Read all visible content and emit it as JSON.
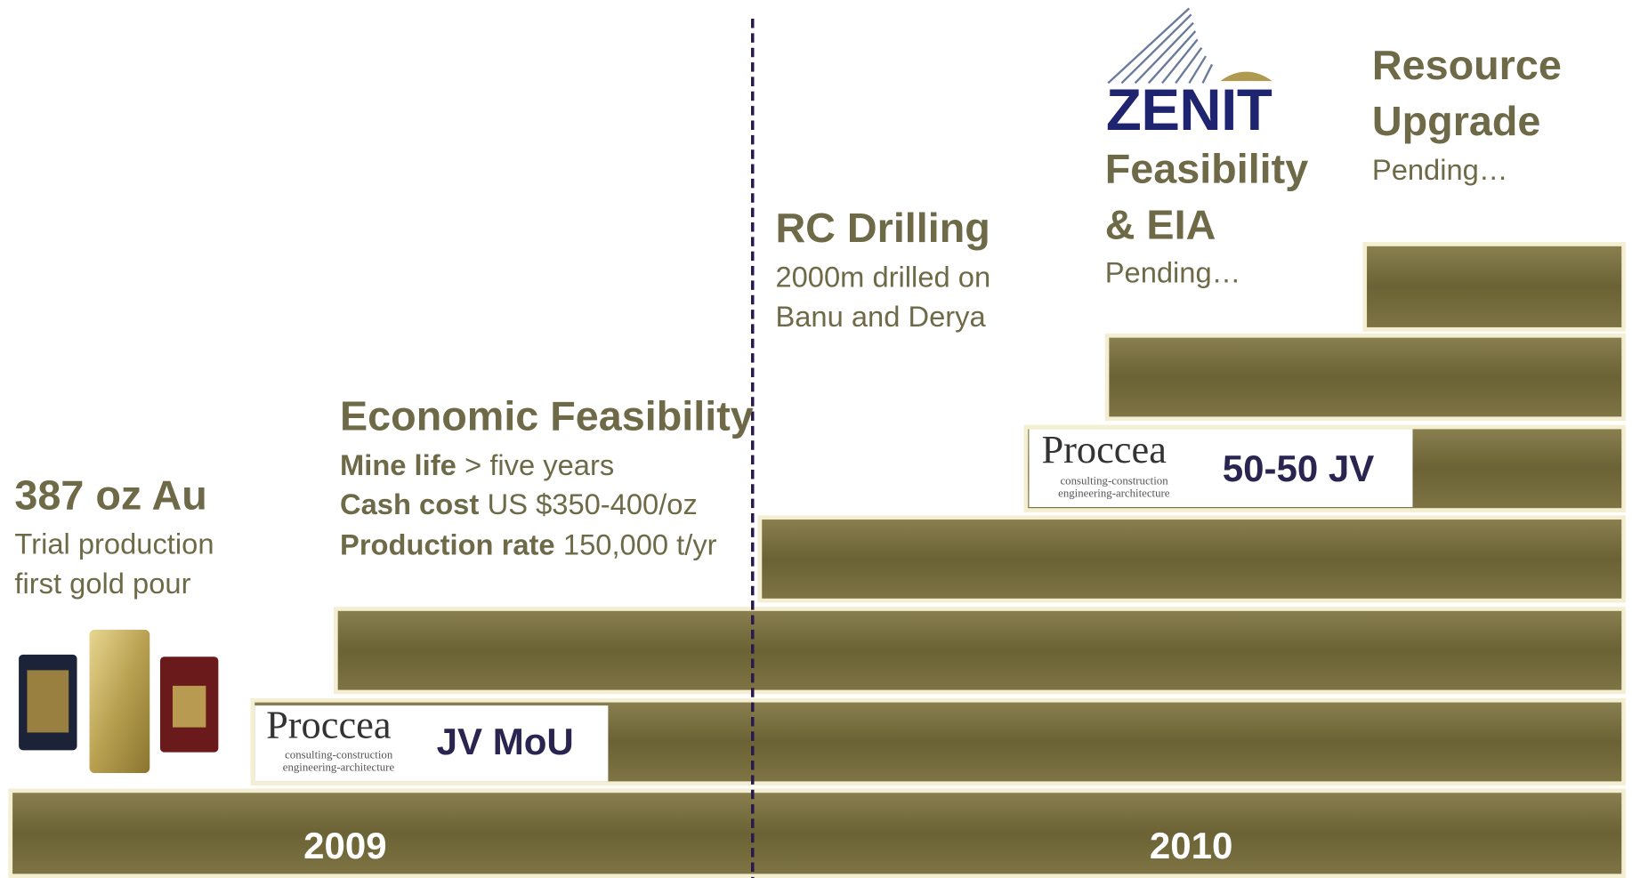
{
  "years": [
    "2009",
    "2010"
  ],
  "milestones": [
    {
      "title": "387 oz Au",
      "lines": [
        "Trial production",
        "first gold pour"
      ]
    },
    {
      "title": "Economic Feasibility",
      "details": [
        {
          "label": "Mine life",
          "text": "> five years"
        },
        {
          "label": "Cash cost",
          "text": "US $350-400/oz"
        },
        {
          "label": "Production rate",
          "text": "150,000 t/yr"
        }
      ]
    },
    {
      "title": "RC Drilling",
      "lines": [
        "2000m drilled on",
        "Banu and Derya"
      ]
    },
    {
      "title": [
        "Feasibility",
        "& EIA"
      ],
      "lines": [
        "Pending…"
      ]
    },
    {
      "title": [
        "Resource",
        "Upgrade"
      ],
      "lines": [
        "Pending…"
      ]
    }
  ],
  "partners": [
    {
      "logo": "Proccea",
      "tagline": [
        "consulting-construction",
        "engineering-architecture"
      ],
      "label": "JV MoU"
    },
    {
      "logo": "Proccea",
      "tagline": [
        "consulting-construction",
        "engineering-architecture"
      ],
      "label": "50-50 JV"
    }
  ],
  "zenit_logo": "ZENIT"
}
